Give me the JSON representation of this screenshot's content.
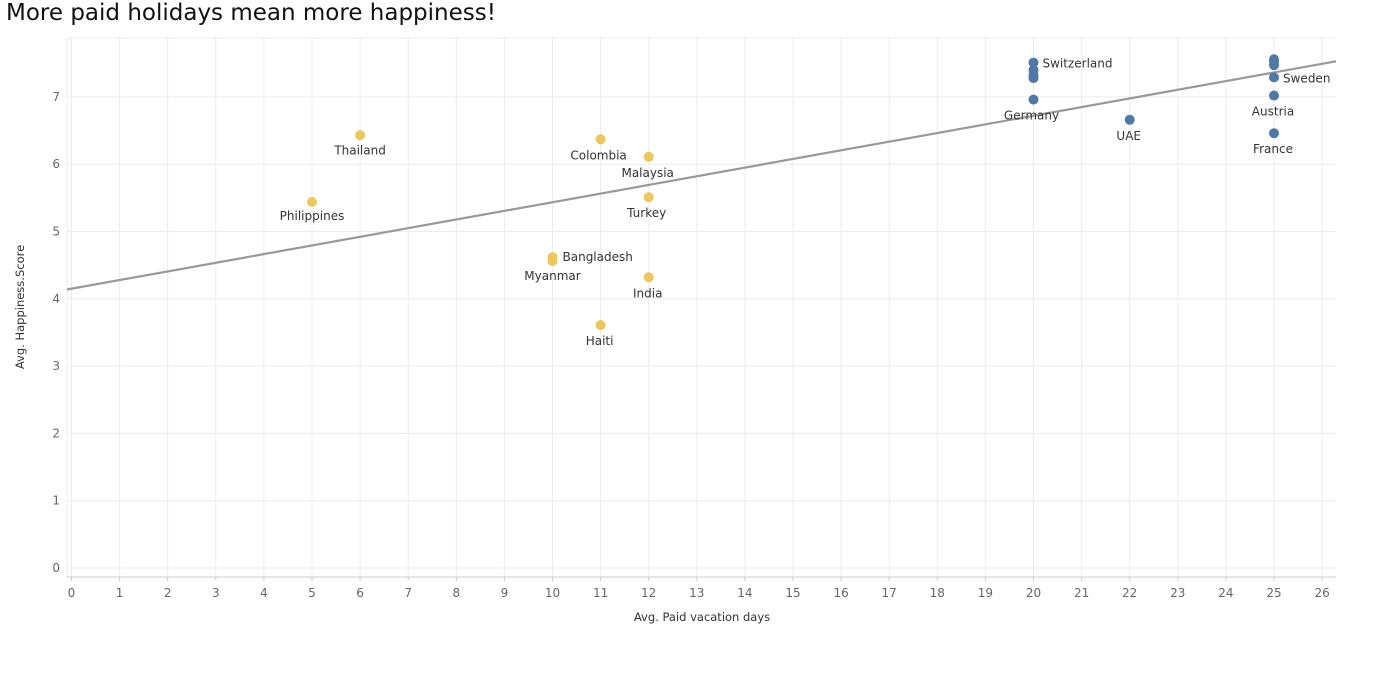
{
  "chart_data": {
    "type": "scatter",
    "title": "More paid holidays mean more happiness!",
    "xlabel": "Avg. Paid vacation days",
    "ylabel": "Avg. Happiness.Score",
    "xlim": [
      0,
      26.3
    ],
    "ylim": [
      0,
      7.9
    ],
    "x_ticks": [
      0,
      1,
      2,
      3,
      4,
      5,
      6,
      7,
      8,
      9,
      10,
      11,
      12,
      13,
      14,
      15,
      16,
      17,
      18,
      19,
      20,
      21,
      22,
      23,
      24,
      25,
      26
    ],
    "y_ticks": [
      0,
      1,
      2,
      3,
      4,
      5,
      6,
      7
    ],
    "grid": true,
    "trend_line": {
      "x": [
        0,
        26.3
      ],
      "y": [
        4.15,
        7.53
      ],
      "color": "#999999"
    },
    "series": [
      {
        "color": "#edc75a",
        "points": [
          {
            "x": 5,
            "y": 5.44,
            "label": "Philippines"
          },
          {
            "x": 6,
            "y": 6.43,
            "label": "Thailand"
          },
          {
            "x": 10,
            "y": 4.62,
            "label": "Bangladesh"
          },
          {
            "x": 10,
            "y": 4.56,
            "label": "Myanmar"
          },
          {
            "x": 11,
            "y": 6.37,
            "label": "Colombia"
          },
          {
            "x": 11,
            "y": 3.61,
            "label": "Haiti"
          },
          {
            "x": 12,
            "y": 6.11,
            "label": "Malaysia"
          },
          {
            "x": 12,
            "y": 5.51,
            "label": "Turkey"
          },
          {
            "x": 12,
            "y": 4.32,
            "label": "India"
          }
        ]
      },
      {
        "color": "#4e79a7",
        "points": [
          {
            "x": 20,
            "y": 7.51,
            "label": "Switzerland"
          },
          {
            "x": 20,
            "y": 7.4,
            "label": ""
          },
          {
            "x": 20,
            "y": 7.33,
            "label": ""
          },
          {
            "x": 20,
            "y": 7.28,
            "label": ""
          },
          {
            "x": 20,
            "y": 6.96,
            "label": "Germany"
          },
          {
            "x": 22,
            "y": 6.66,
            "label": "UAE"
          },
          {
            "x": 25,
            "y": 7.56,
            "label": ""
          },
          {
            "x": 25,
            "y": 7.52,
            "label": ""
          },
          {
            "x": 25,
            "y": 7.47,
            "label": ""
          },
          {
            "x": 25,
            "y": 7.29,
            "label": "Sweden"
          },
          {
            "x": 25,
            "y": 7.02,
            "label": "Austria"
          },
          {
            "x": 25,
            "y": 6.46,
            "label": "France"
          }
        ]
      }
    ]
  }
}
